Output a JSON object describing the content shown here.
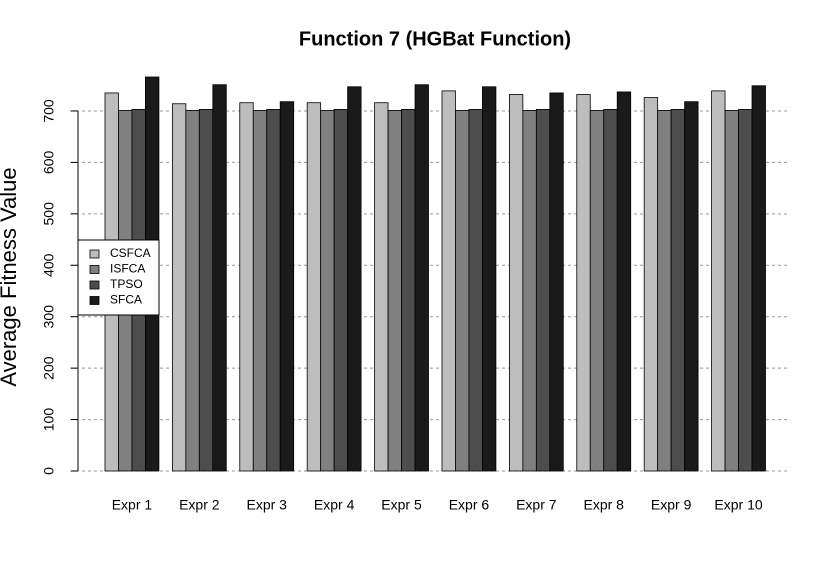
{
  "chart_data": {
    "type": "bar",
    "title": "Function 7 (HGBat Function)",
    "y_label": "Average Fitness Value",
    "categories": [
      "Expr 1",
      "Expr 2",
      "Expr 3",
      "Expr 4",
      "Expr 5",
      "Expr 6",
      "Expr 7",
      "Expr 8",
      "Expr 9",
      "Expr 10"
    ],
    "series": [
      {
        "name": "CSFCA",
        "color": "#bdbdbd",
        "values": [
          735,
          714,
          716,
          716,
          716,
          739,
          732,
          732,
          726,
          739
        ]
      },
      {
        "name": "ISFCA",
        "color": "#808080",
        "values": [
          701,
          701,
          701,
          701,
          701,
          701,
          701,
          701,
          701,
          701
        ]
      },
      {
        "name": "TPSO",
        "color": "#4d4d4d",
        "values": [
          703,
          703,
          703,
          703,
          703,
          703,
          703,
          703,
          703,
          703
        ]
      },
      {
        "name": "SFCA",
        "color": "#1a1a1a",
        "values": [
          766,
          751,
          718,
          747,
          751,
          747,
          735,
          737,
          718,
          749
        ]
      }
    ],
    "ylim": [
      0,
      766
    ],
    "yticks": [
      0,
      100,
      200,
      300,
      400,
      500,
      600,
      700
    ],
    "grid": true,
    "legend": "left"
  }
}
